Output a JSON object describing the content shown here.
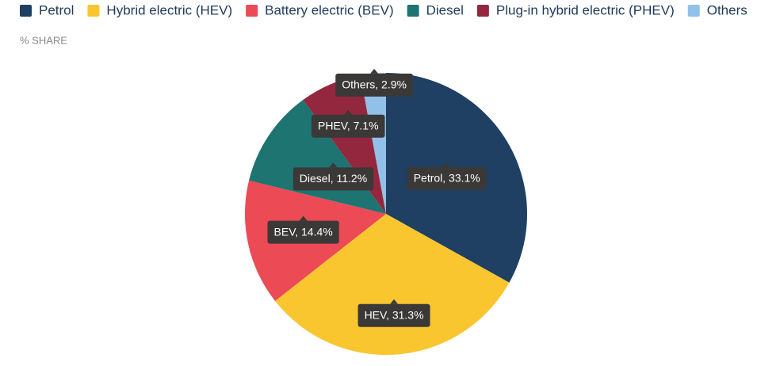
{
  "chart_data": {
    "type": "pie",
    "subtitle": "% SHARE",
    "categories": [
      "Petrol",
      "Hybrid electric (HEV)",
      "Battery electric (BEV)",
      "Diesel",
      "Plug-in hybrid electric (PHEV)",
      "Others"
    ],
    "values": [
      33.1,
      31.3,
      14.4,
      11.2,
      7.1,
      2.9
    ],
    "value_labels": [
      "Petrol, 33.1%",
      "HEV, 31.3%",
      "BEV, 14.4%",
      "Diesel, 11.2%",
      "PHEV, 7.1%",
      "Others, 2.9%"
    ],
    "colors": [
      "#1f4062",
      "#f9c630",
      "#ec4a55",
      "#1d7471",
      "#93273e",
      "#91c1e8"
    ],
    "legend": "top"
  }
}
